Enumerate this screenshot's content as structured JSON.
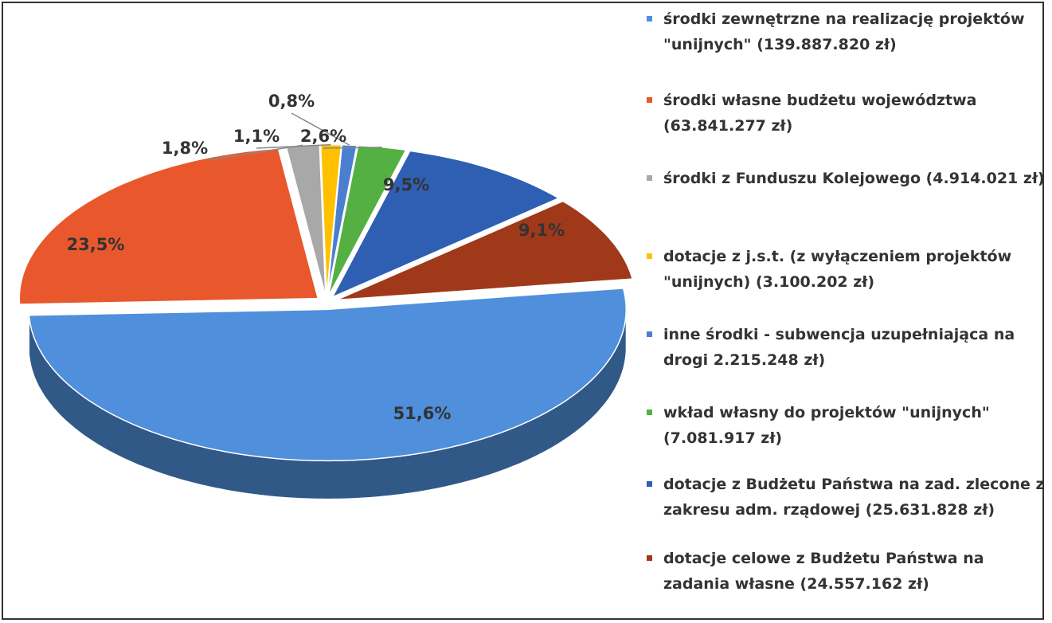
{
  "chart_data": {
    "type": "pie",
    "categories": [
      "środki zewnętrzne na realizację projektów \"unijnych\" (139.887.820 zł)",
      "środki własne budżetu województwa (63.841.277 zł)",
      "środki z Funduszu Kolejowego (4.914.021 zł)",
      "dotacje z j.s.t. (z wyłączeniem projektów \"unijnych) (3.100.202 zł)",
      "inne środki - subwencja uzupełniająca na drogi 2.215.248 zł)",
      "wkład własny do projektów \"unijnych\" (7.081.917 zł)",
      "dotacje z Budżetu Państwa na zad. zlecone z zakresu adm. rządowej (25.631.828 zł)",
      "dotacje celowe z Budżetu Państwa na zadania własne (24.557.162 zł)"
    ],
    "values": [
      51.6,
      23.5,
      1.8,
      1.1,
      0.8,
      2.6,
      9.5,
      9.1
    ],
    "value_labels": [
      "51,6%",
      "23,5%",
      "1,8%",
      "1,1%",
      "0,8%",
      "2,6%",
      "9,5%",
      "9,1%"
    ],
    "colors": [
      "#4f8fdc",
      "#e8582c",
      "#a8a8a8",
      "#ffc000",
      "#4a7fd0",
      "#55b043",
      "#2f5fb3",
      "#a0391a"
    ],
    "legend": "right"
  }
}
